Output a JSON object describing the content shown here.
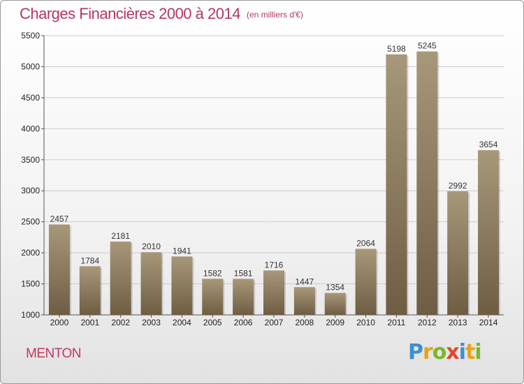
{
  "header": {
    "title": "Charges Financières 2000 à 2014",
    "subtitle": "(en milliers d'€)"
  },
  "footer": {
    "commune": "MENTON",
    "logo_letters": [
      {
        "char": "P",
        "color": "#3d8fd1"
      },
      {
        "char": "r",
        "color": "#e8a317"
      },
      {
        "char": "o",
        "color": "#7ab829"
      },
      {
        "char": "x",
        "color": "#e2462e"
      },
      {
        "char": "i",
        "color": "#3d8fd1"
      },
      {
        "char": "t",
        "color": "#e8a317"
      },
      {
        "char": "i",
        "color": "#7ab829"
      }
    ]
  },
  "colors": {
    "title": "#b5365f",
    "bar_light": "#a8987a",
    "bar_dark": "#6e5d43",
    "grid": "#cccccc",
    "axis": "#555555"
  },
  "chart_data": {
    "type": "bar",
    "title": "Charges Financières 2000 à 2014",
    "subtitle": "(en milliers d'€)",
    "categories": [
      "2000",
      "2001",
      "2002",
      "2003",
      "2004",
      "2005",
      "2006",
      "2007",
      "2008",
      "2009",
      "2010",
      "2011",
      "2012",
      "2013",
      "2014"
    ],
    "values": [
      2457,
      1784,
      2181,
      2010,
      1941,
      1582,
      1581,
      1716,
      1447,
      1354,
      2064,
      5198,
      5245,
      2992,
      3654
    ],
    "yticks": [
      1000,
      1500,
      2000,
      2500,
      3000,
      3500,
      4000,
      4500,
      5000,
      5500
    ],
    "ylim": [
      1000,
      5500
    ],
    "grid": true,
    "data_labels": true,
    "xlabel": "",
    "ylabel": ""
  }
}
